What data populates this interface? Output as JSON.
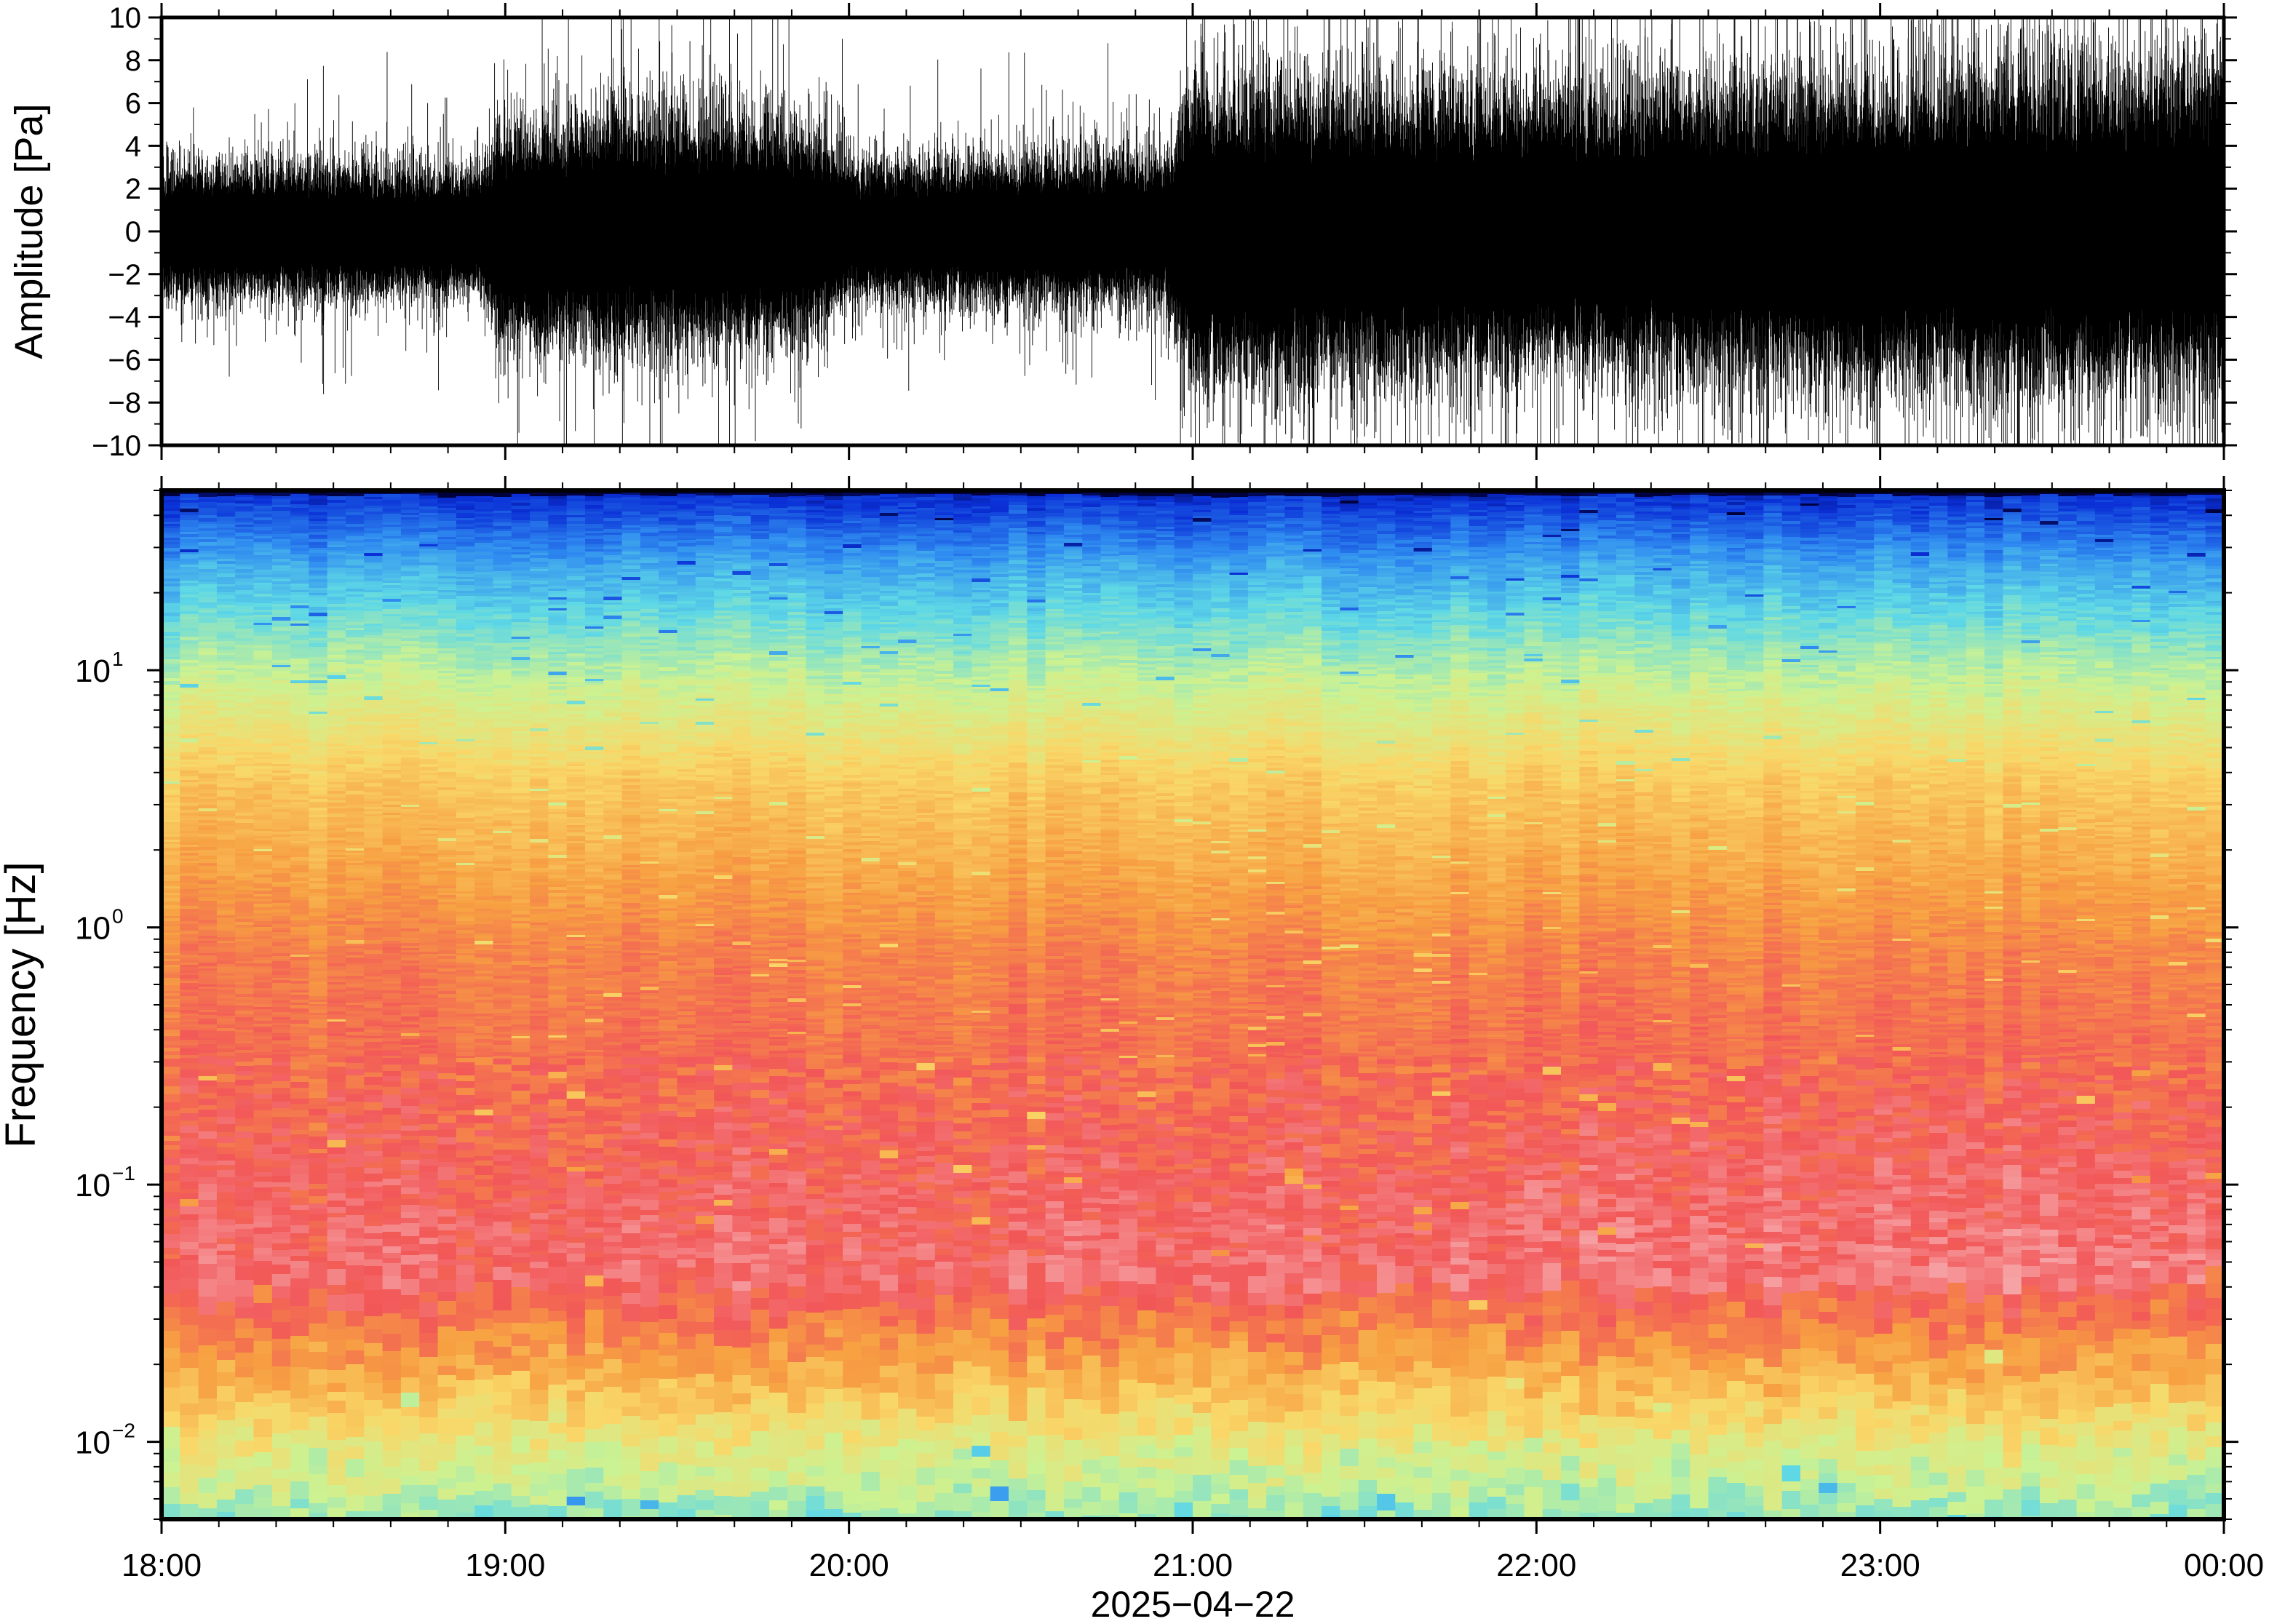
{
  "figure": {
    "date_label": "2025−04−22"
  },
  "chart_data": [
    {
      "type": "line",
      "ylabel": "Amplitude [Pa]",
      "xlabel": "",
      "ylim": [
        -10,
        10
      ],
      "yticks": [
        -10,
        -8,
        -6,
        -4,
        -2,
        0,
        2,
        4,
        6,
        8,
        10
      ],
      "ytick_labels": [
        "−10",
        "−8",
        "−6",
        "−4",
        "−2",
        "0",
        "2",
        "4",
        "6",
        "8",
        "10"
      ],
      "x_range": [
        "18:00",
        "00:00"
      ],
      "grid": false,
      "series": [
        {
          "envelope_time": [
            "18:00",
            "18:30",
            "18:55",
            "19:00",
            "19:30",
            "19:55",
            "20:00",
            "20:30",
            "20:55",
            "21:00",
            "21:30",
            "22:00",
            "22:30",
            "23:00",
            "23:30",
            "00:00"
          ],
          "envelope_amplitude": [
            2.5,
            2.5,
            2.3,
            4.0,
            4.5,
            3.8,
            2.5,
            2.8,
            2.8,
            5.5,
            5.5,
            5.2,
            5.6,
            5.8,
            6.0,
            6.0
          ],
          "peak_amplitude": 10
        }
      ]
    },
    {
      "type": "heatmap",
      "ylabel": "Frequency [Hz]",
      "xlabel": "2025−04−22",
      "x_range": [
        "18:00",
        "00:00"
      ],
      "xtick_labels": [
        "18:00",
        "19:00",
        "20:00",
        "21:00",
        "22:00",
        "23:00",
        "00:00"
      ],
      "y_scale": "log",
      "ylim": [
        0.005,
        50
      ],
      "yticks": [
        0.01,
        0.1,
        1,
        10
      ],
      "ytick_labels": [
        {
          "base": "10",
          "exp": "−2"
        },
        {
          "base": "10",
          "exp": "−1"
        },
        {
          "base": "10",
          "exp": "0"
        },
        {
          "base": "10",
          "exp": "1"
        }
      ],
      "colormap": "rainbow",
      "color_stops": [
        "#00003c",
        "#0a2fd6",
        "#2f8bf0",
        "#5ed8e6",
        "#ccf292",
        "#f9d768",
        "#f7a042",
        "#f25758",
        "#f6a3a6"
      ],
      "grid": false
    }
  ]
}
